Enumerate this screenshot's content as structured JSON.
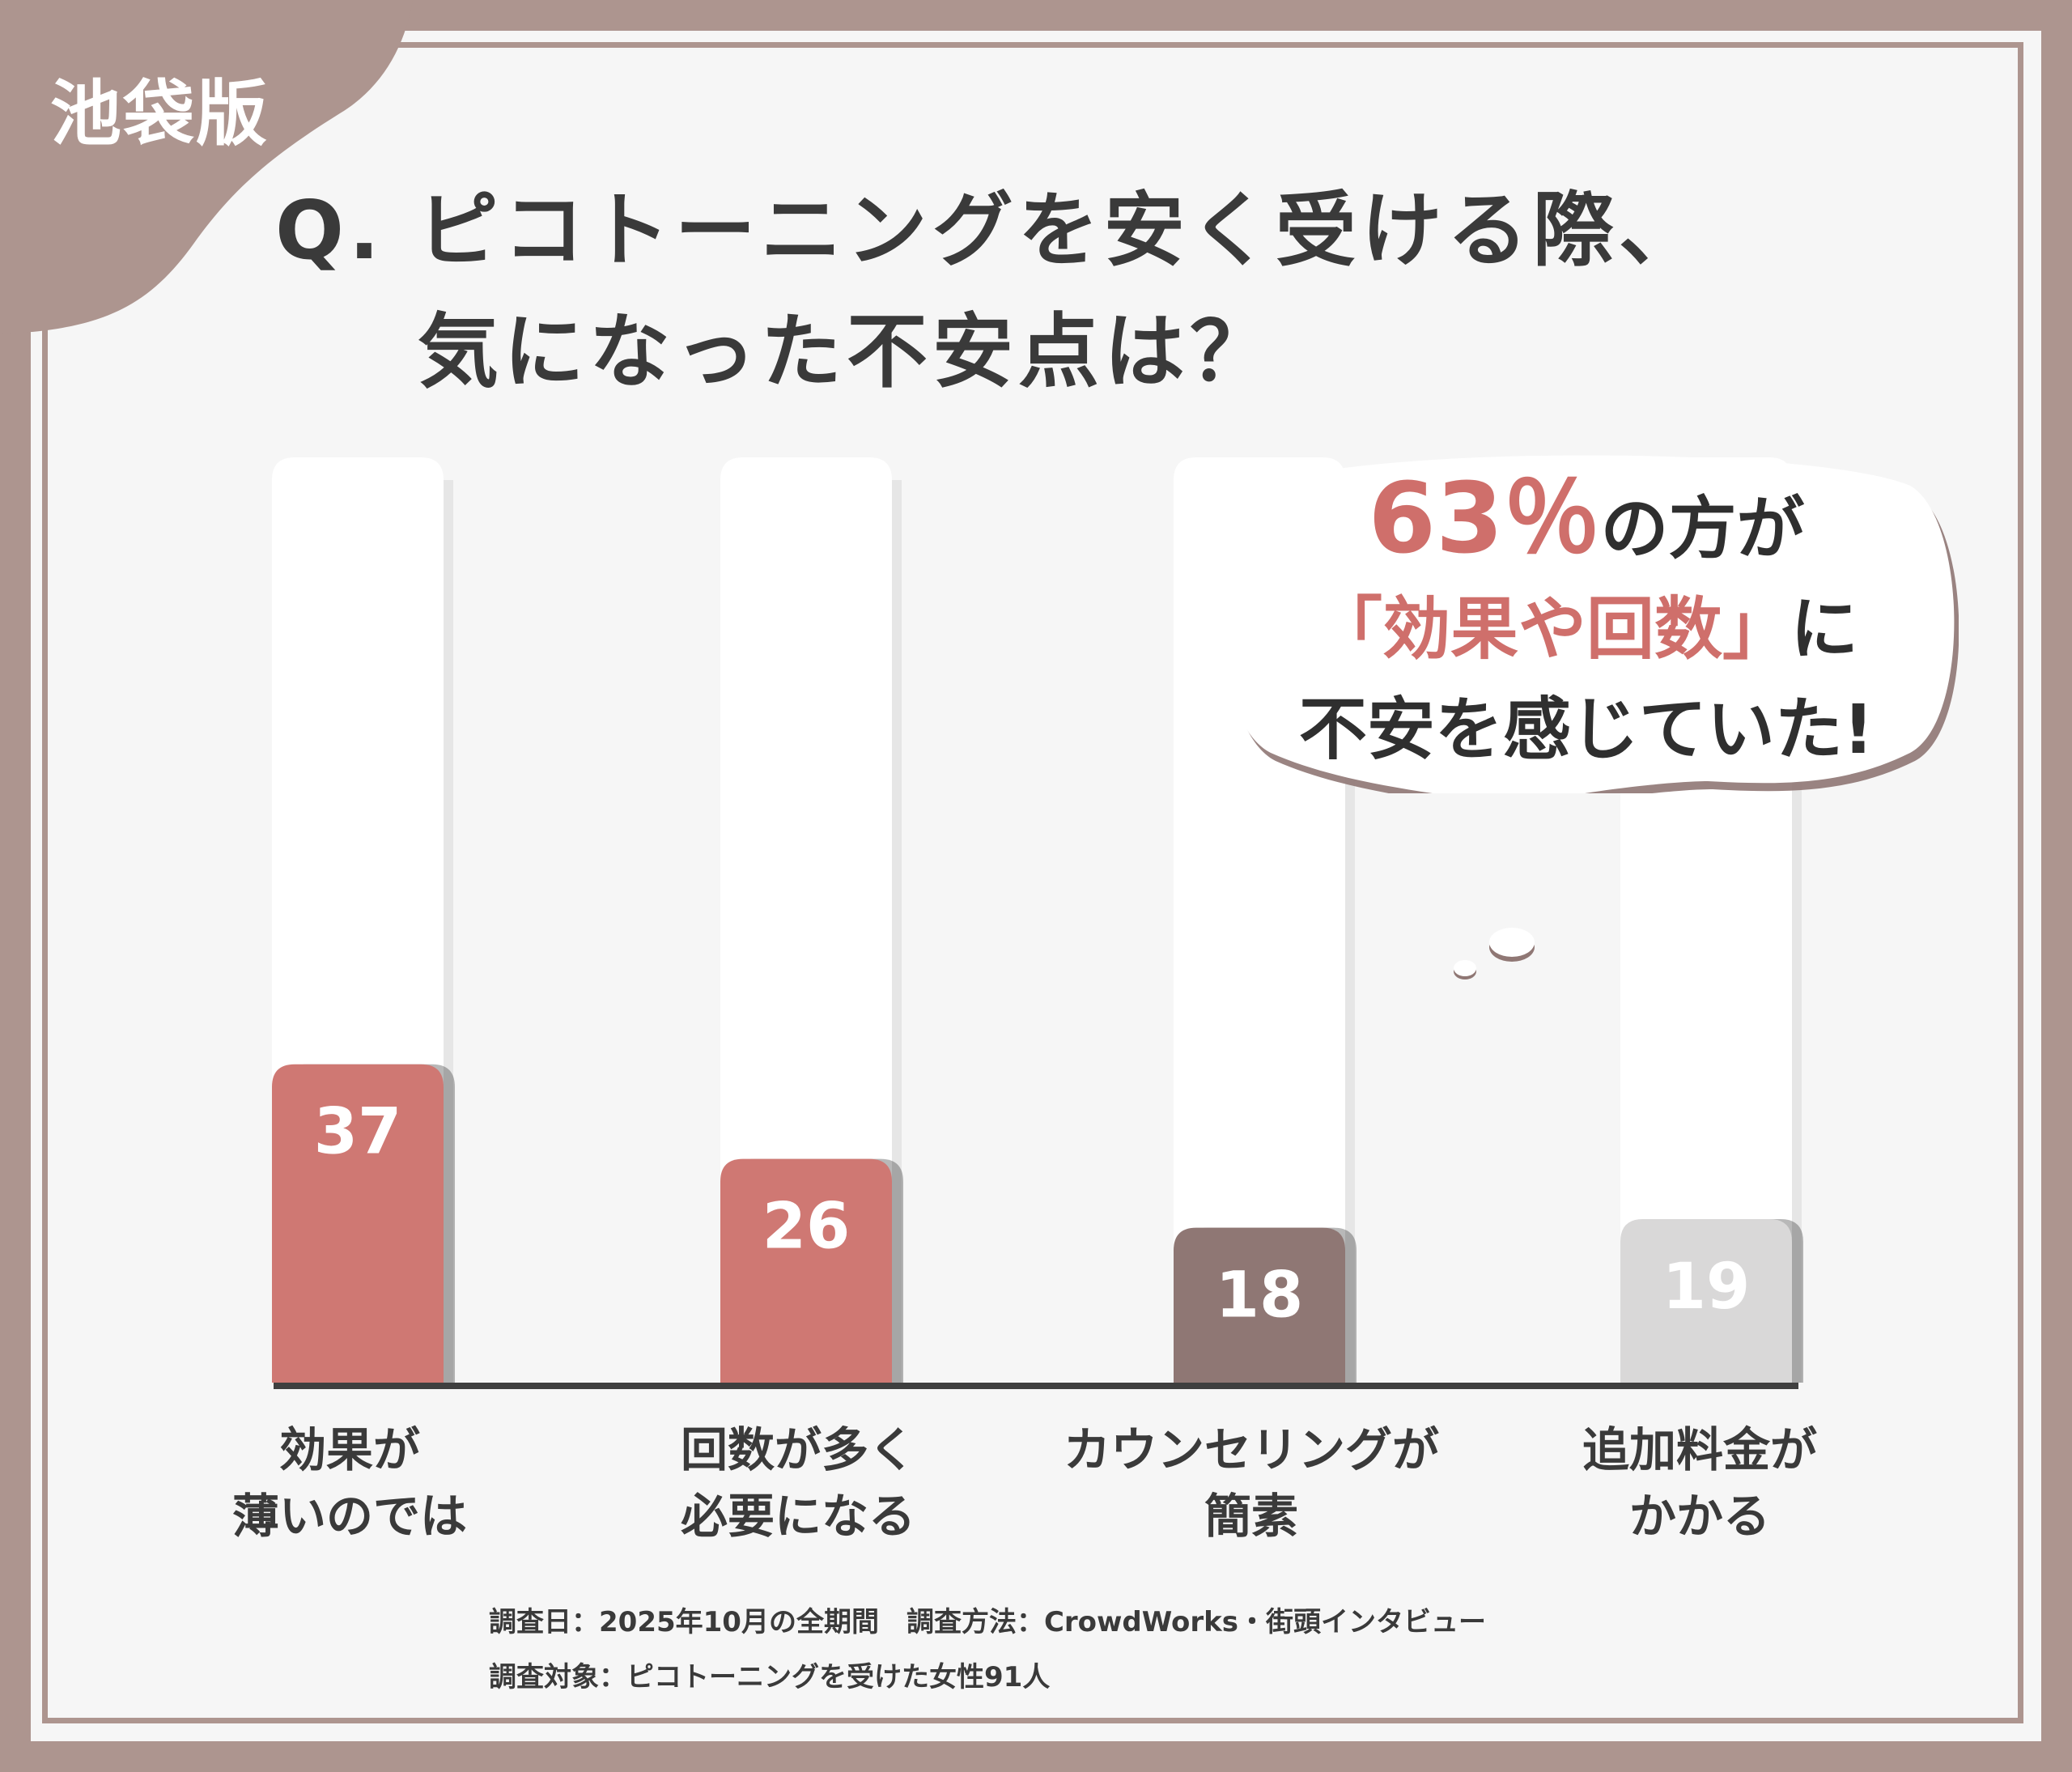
{
  "badge": "池袋版",
  "title": {
    "line1": "Q. ピコトーニングを安く受ける際、",
    "line2": "気になった不安点は？"
  },
  "callout": {
    "percent": "63％",
    "line1_rest": "の方が",
    "line2_accent": "「効果や回数」",
    "line2_rest": "に",
    "line3": "不安を感じていた!"
  },
  "colors": {
    "frame": "#ad958f",
    "accent_red": "#cf6f6b",
    "bar_red": "#cf7873",
    "bar_brown": "#8f7774",
    "bar_gray": "#d9d8d8"
  },
  "chart_data": {
    "type": "bar",
    "categories": [
      [
        "効果が",
        "薄いのでは"
      ],
      [
        "回数が多く",
        "必要になる"
      ],
      [
        "カウンセリングが",
        "簡素"
      ],
      [
        "追加料金が",
        "かかる"
      ]
    ],
    "values": [
      37,
      26,
      18,
      19
    ],
    "bar_colors": [
      "#cf7873",
      "#cf7873",
      "#8f7774",
      "#d9d8d8"
    ],
    "value_label_color": "#ffffff",
    "ylim": [
      0,
      100
    ],
    "grid": false
  },
  "footer": {
    "line1": "調査日：2025年10月の全期間　調査方法：CrowdWorks・街頭インタビュー",
    "line2": "調査対象：ピコトーニングを受けた女性91人"
  }
}
